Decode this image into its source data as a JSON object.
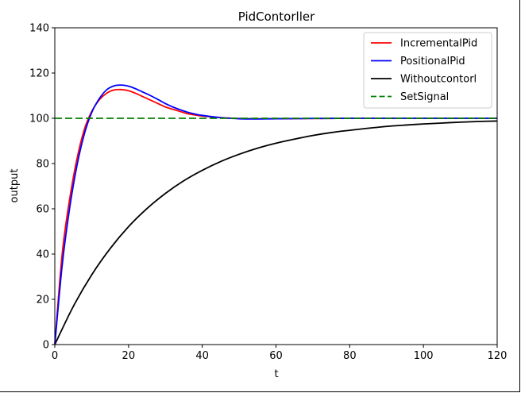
{
  "chart_data": {
    "type": "line",
    "title": "PidContorller",
    "xlabel": "t",
    "ylabel": "output",
    "xlim": [
      0,
      120
    ],
    "ylim": [
      0,
      140
    ],
    "xticks": [
      0,
      20,
      40,
      60,
      80,
      100,
      120
    ],
    "yticks": [
      0,
      20,
      40,
      60,
      80,
      100,
      120,
      140
    ],
    "grid": false,
    "legend_position": "top-right",
    "series": [
      {
        "name": "IncrementalPid",
        "color": "#ff0000",
        "style": "solid",
        "x": [
          0,
          2,
          4,
          6,
          8,
          10,
          12,
          14,
          16,
          18,
          20,
          22,
          24,
          26,
          28,
          30,
          32,
          34,
          36,
          38,
          40,
          45,
          50,
          55,
          60,
          70,
          80,
          90,
          100,
          110,
          120
        ],
        "y": [
          0,
          40,
          64,
          82,
          95,
          103,
          108,
          111,
          112.5,
          112.7,
          112.2,
          111,
          109.5,
          108,
          106.5,
          105,
          104,
          103,
          102,
          101.5,
          101,
          100.3,
          99.9,
          99.8,
          99.8,
          99.9,
          100,
          100,
          100,
          100,
          100
        ]
      },
      {
        "name": "PositionalPid",
        "color": "#0000ff",
        "style": "solid",
        "x": [
          0,
          2,
          4,
          6,
          8,
          10,
          12,
          14,
          16,
          18,
          20,
          22,
          24,
          26,
          28,
          30,
          32,
          34,
          36,
          38,
          40,
          45,
          50,
          55,
          60,
          70,
          80,
          90,
          100,
          110,
          120
        ],
        "y": [
          0,
          35,
          60,
          79,
          93,
          102.5,
          108.5,
          112.5,
          114.3,
          114.7,
          114.2,
          113,
          111.5,
          110,
          108.3,
          106.5,
          105,
          103.8,
          102.7,
          101.9,
          101.3,
          100.3,
          99.8,
          99.7,
          99.8,
          99.9,
          100,
          100,
          100,
          100,
          100
        ]
      },
      {
        "name": "Withoutcontorl",
        "color": "#000000",
        "style": "solid",
        "x": [
          0,
          5,
          10,
          15,
          20,
          25,
          30,
          35,
          40,
          45,
          50,
          55,
          60,
          65,
          70,
          75,
          80,
          85,
          90,
          95,
          100,
          105,
          110,
          115,
          120
        ],
        "y": [
          0,
          16.8,
          30.8,
          42.4,
          52.1,
          60.1,
          66.8,
          72.4,
          77.0,
          80.9,
          84.1,
          86.8,
          89.0,
          90.8,
          92.4,
          93.7,
          94.7,
          95.6,
          96.4,
          97.0,
          97.5,
          97.9,
          98.3,
          98.6,
          98.8
        ]
      },
      {
        "name": "SetSignal",
        "color": "#008000",
        "style": "dashed",
        "x": [
          0,
          120
        ],
        "y": [
          100,
          100
        ]
      }
    ]
  }
}
